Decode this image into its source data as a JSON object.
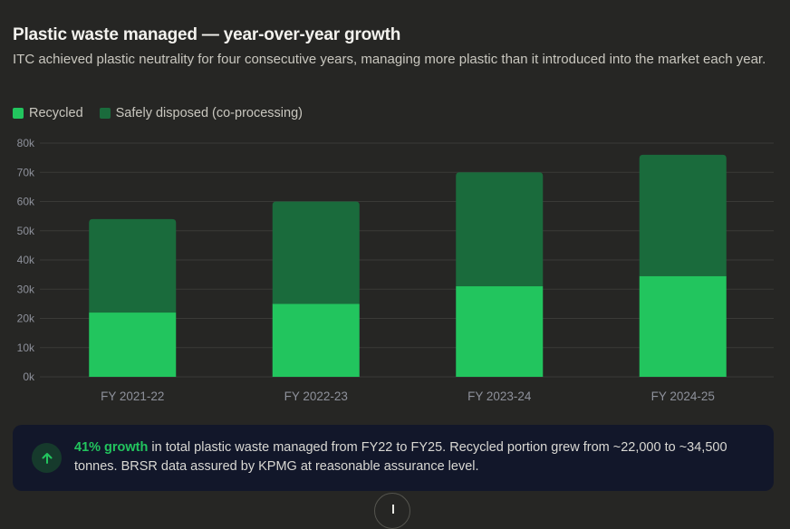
{
  "header": {
    "title": "Plastic waste managed — year-over-year growth",
    "subtitle": "ITC achieved plastic neutrality for four consecutive years, managing more plastic than it introduced into the market each year."
  },
  "colors": {
    "recycled": "#22c55e",
    "disposed": "#1a6b3c",
    "gridline": "#3a3a37",
    "accent": "#22c55e"
  },
  "chart_data": {
    "type": "bar",
    "stacked": true,
    "title": "Plastic waste managed — year-over-year growth",
    "xlabel": "",
    "ylabel": "",
    "categories": [
      "FY 2021-22",
      "FY 2022-23",
      "FY 2023-24",
      "FY 2024-25"
    ],
    "series": [
      {
        "name": "Recycled",
        "values": [
          22000,
          25000,
          31000,
          34500
        ]
      },
      {
        "name": "Safely disposed (co-processing)",
        "values": [
          32000,
          35000,
          39000,
          41500
        ]
      }
    ],
    "ylim": [
      0,
      80000
    ],
    "yticks": [
      0,
      10000,
      20000,
      30000,
      40000,
      50000,
      60000,
      70000,
      80000
    ],
    "ytick_labels": [
      "0k",
      "10k",
      "20k",
      "30k",
      "40k",
      "50k",
      "60k",
      "70k",
      "80k"
    ],
    "grid": true,
    "legend_position": "top-left"
  },
  "callout": {
    "icon": "arrow-up-icon",
    "highlight": "41% growth",
    "text": " in total plastic waste managed from FY22 to FY25. Recycled portion grew from ~22,000 to ~34,500 tonnes. BRSR data assured by KPMG at reasonable assurance level."
  },
  "scroll_button": {
    "icon": "arrow-down-icon"
  }
}
